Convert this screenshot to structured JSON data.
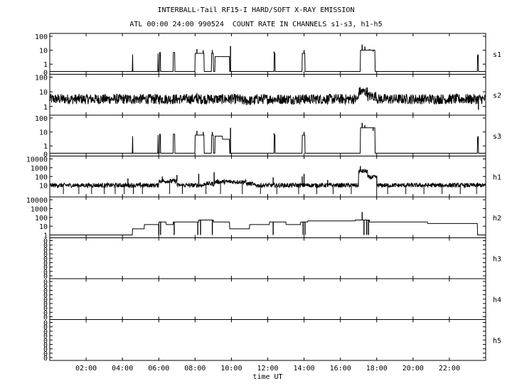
{
  "title": "INTERBALL-Tail RF15-I HARD/SOFT X-RAY EMISSION",
  "subtitle": "ATL 00:00 24:00 990524  COUNT RATE IN CHANNELS s1-s3, h1-h5",
  "chart_data": {
    "type": "line",
    "xlabel": "time UT",
    "x_unit": "hours UT",
    "xlim": [
      0,
      24
    ],
    "x_ticks": [
      2,
      4,
      6,
      8,
      10,
      12,
      14,
      16,
      18,
      20,
      22
    ],
    "x_tick_labels": [
      "02:00",
      "04:00",
      "06:00",
      "08:00",
      "10:00",
      "12:00",
      "14:00",
      "16:00",
      "18:00",
      "20:00",
      "22:00"
    ],
    "panels": [
      {
        "name": "s1",
        "scale": "log",
        "ylim": [
          0.3,
          100
        ],
        "y_ticks": [
          1,
          10,
          100
        ],
        "y_tick_labels": [
          "1",
          "10",
          "100"
        ],
        "bottom_label": "0",
        "baseline": 0.3,
        "noise": 0,
        "segments": [
          {
            "start": 4.55,
            "end": 4.56,
            "value": 5
          },
          {
            "start": 5.95,
            "end": 5.98,
            "value": 6
          },
          {
            "start": 6.05,
            "end": 6.1,
            "value": 7
          },
          {
            "start": 6.8,
            "end": 6.88,
            "value": 7
          },
          {
            "start": 8.0,
            "end": 8.5,
            "value": 6
          },
          {
            "start": 8.9,
            "end": 9.0,
            "value": 6
          },
          {
            "start": 9.1,
            "end": 9.9,
            "value": 3.5
          },
          {
            "start": 12.35,
            "end": 12.4,
            "value": 6
          },
          {
            "start": 13.9,
            "end": 14.05,
            "value": 6
          },
          {
            "start": 17.1,
            "end": 17.9,
            "value": 10
          },
          {
            "start": 23.55,
            "end": 23.6,
            "value": 4
          }
        ],
        "spikes": [
          {
            "x": 4.55,
            "value": 5
          },
          {
            "x": 5.96,
            "value": 6
          },
          {
            "x": 6.07,
            "value": 7
          },
          {
            "x": 6.82,
            "value": 7
          },
          {
            "x": 8.1,
            "value": 12
          },
          {
            "x": 8.45,
            "value": 10
          },
          {
            "x": 8.95,
            "value": 10
          },
          {
            "x": 9.95,
            "value": 20
          },
          {
            "x": 12.35,
            "value": 8
          },
          {
            "x": 14.0,
            "value": 10
          },
          {
            "x": 17.2,
            "value": 25
          },
          {
            "x": 17.35,
            "value": 18
          },
          {
            "x": 17.6,
            "value": 12
          },
          {
            "x": 17.8,
            "value": 8
          },
          {
            "x": 23.58,
            "value": 5
          }
        ]
      },
      {
        "name": "s2",
        "scale": "log",
        "ylim": [
          0.4,
          100
        ],
        "y_ticks": [
          1,
          10,
          100
        ],
        "y_tick_labels": [
          "1",
          "10",
          "100"
        ],
        "bottom_label": "",
        "baseline": 3.2,
        "noise": 0.35,
        "segments": [
          {
            "start": 9.7,
            "end": 10.0,
            "value": 3.2
          },
          {
            "start": 10.5,
            "end": 11.3,
            "value": 2.5
          },
          {
            "start": 17.0,
            "end": 17.5,
            "value": 10
          },
          {
            "start": 17.5,
            "end": 18.0,
            "value": 5
          }
        ],
        "spikes": [
          {
            "x": 8.1,
            "value": 8
          },
          {
            "x": 8.9,
            "value": 6
          },
          {
            "x": 9.95,
            "value": 6
          },
          {
            "x": 14.0,
            "value": 6
          },
          {
            "x": 17.2,
            "value": 15
          },
          {
            "x": 23.6,
            "value": 0.6
          }
        ]
      },
      {
        "name": "s3",
        "scale": "log",
        "ylim": [
          0.3,
          100
        ],
        "y_ticks": [
          1,
          10,
          100
        ],
        "y_tick_labels": [
          "1",
          "10",
          "100"
        ],
        "bottom_label": "0",
        "baseline": 0.3,
        "noise": 0,
        "segments": [
          {
            "start": 4.55,
            "end": 4.56,
            "value": 5
          },
          {
            "start": 5.95,
            "end": 5.98,
            "value": 6
          },
          {
            "start": 6.05,
            "end": 6.1,
            "value": 7
          },
          {
            "start": 6.8,
            "end": 6.88,
            "value": 7
          },
          {
            "start": 8.0,
            "end": 8.5,
            "value": 6
          },
          {
            "start": 8.9,
            "end": 9.0,
            "value": 6
          },
          {
            "start": 9.1,
            "end": 9.5,
            "value": 5
          },
          {
            "start": 9.5,
            "end": 9.9,
            "value": 3
          },
          {
            "start": 12.35,
            "end": 12.4,
            "value": 6
          },
          {
            "start": 13.9,
            "end": 14.05,
            "value": 6
          },
          {
            "start": 17.1,
            "end": 17.9,
            "value": 20
          },
          {
            "start": 23.55,
            "end": 23.6,
            "value": 4
          }
        ],
        "spikes": [
          {
            "x": 4.55,
            "value": 5
          },
          {
            "x": 5.96,
            "value": 6
          },
          {
            "x": 6.07,
            "value": 7
          },
          {
            "x": 6.82,
            "value": 7
          },
          {
            "x": 8.1,
            "value": 12
          },
          {
            "x": 8.45,
            "value": 10
          },
          {
            "x": 8.95,
            "value": 10
          },
          {
            "x": 9.95,
            "value": 20
          },
          {
            "x": 12.35,
            "value": 8
          },
          {
            "x": 14.0,
            "value": 10
          },
          {
            "x": 17.2,
            "value": 45
          },
          {
            "x": 17.35,
            "value": 30
          },
          {
            "x": 17.6,
            "value": 20
          },
          {
            "x": 17.8,
            "value": 12
          },
          {
            "x": 23.58,
            "value": 5
          }
        ]
      },
      {
        "name": "h1",
        "scale": "log",
        "ylim": [
          1,
          10000
        ],
        "y_ticks": [
          10,
          100,
          1000,
          10000
        ],
        "y_tick_labels": [
          "10",
          "100",
          "1000",
          "10000"
        ],
        "bottom_label": "",
        "baseline": 10,
        "noise": 0.25,
        "segments": [
          {
            "start": 6.0,
            "end": 7.0,
            "value": 30
          },
          {
            "start": 8.5,
            "end": 9.1,
            "value": 15
          },
          {
            "start": 9.1,
            "end": 10.8,
            "value": 25
          },
          {
            "start": 10.8,
            "end": 11.2,
            "value": 15
          },
          {
            "start": 17.0,
            "end": 17.5,
            "value": 400
          },
          {
            "start": 17.5,
            "end": 18.0,
            "value": 80
          }
        ],
        "spikes": [
          {
            "x": 4.3,
            "value": 60
          },
          {
            "x": 6.2,
            "value": 100
          },
          {
            "x": 7.0,
            "value": 150
          },
          {
            "x": 8.2,
            "value": 200
          },
          {
            "x": 9.05,
            "value": 300
          },
          {
            "x": 12.3,
            "value": 80
          },
          {
            "x": 13.9,
            "value": 100
          },
          {
            "x": 14.0,
            "value": 200
          },
          {
            "x": 15.3,
            "value": 40
          },
          {
            "x": 17.1,
            "value": 1500
          },
          {
            "x": 17.4,
            "value": 500
          }
        ],
        "dropouts": [
          0.75,
          1.6,
          2.3,
          3.0,
          3.6,
          4.1,
          4.6,
          5.1,
          6.6,
          7.3,
          8.6,
          9.4,
          10.6,
          11.6,
          12.5,
          13.7,
          14.7,
          15.6,
          16.6,
          18.0,
          18.6,
          19.6,
          20.6,
          21.6,
          22.6,
          23.5
        ]
      },
      {
        "name": "h2",
        "scale": "log",
        "ylim": [
          1,
          10000
        ],
        "y_ticks": [
          1,
          10,
          100,
          1000,
          10000
        ],
        "y_tick_labels": [
          "1",
          "10",
          "100",
          "1000",
          "10000"
        ],
        "bottom_label": "",
        "baseline": 1,
        "noise": 0,
        "segments": [
          {
            "start": 4.55,
            "end": 5.2,
            "value": 5
          },
          {
            "start": 5.2,
            "end": 6.0,
            "value": 15
          },
          {
            "start": 6.0,
            "end": 6.4,
            "value": 30
          },
          {
            "start": 6.4,
            "end": 6.8,
            "value": 15
          },
          {
            "start": 6.8,
            "end": 8.2,
            "value": 30
          },
          {
            "start": 8.2,
            "end": 9.0,
            "value": 50
          },
          {
            "start": 9.0,
            "end": 9.9,
            "value": 30
          },
          {
            "start": 9.9,
            "end": 11.0,
            "value": 5
          },
          {
            "start": 11.0,
            "end": 12.1,
            "value": 15
          },
          {
            "start": 12.1,
            "end": 13.0,
            "value": 30
          },
          {
            "start": 13.0,
            "end": 13.8,
            "value": 15
          },
          {
            "start": 13.8,
            "end": 14.2,
            "value": 30
          },
          {
            "start": 14.2,
            "end": 16.8,
            "value": 40
          },
          {
            "start": 16.8,
            "end": 17.6,
            "value": 50
          },
          {
            "start": 17.6,
            "end": 20.8,
            "value": 30
          },
          {
            "start": 20.8,
            "end": 23.55,
            "value": 20
          }
        ],
        "spikes": [
          {
            "x": 6.0,
            "value": 1
          },
          {
            "x": 6.1,
            "value": 1
          },
          {
            "x": 6.85,
            "value": 1
          },
          {
            "x": 8.15,
            "value": 1
          },
          {
            "x": 8.3,
            "value": 1
          },
          {
            "x": 8.95,
            "value": 1
          },
          {
            "x": 12.3,
            "value": 1
          },
          {
            "x": 13.95,
            "value": 1
          },
          {
            "x": 14.05,
            "value": 1
          },
          {
            "x": 17.2,
            "value": 400
          },
          {
            "x": 17.3,
            "value": 1
          },
          {
            "x": 17.45,
            "value": 1
          },
          {
            "x": 17.55,
            "value": 1
          },
          {
            "x": 23.58,
            "value": 1
          }
        ]
      },
      {
        "name": "h3",
        "scale": "flat",
        "ylim": [
          0,
          1
        ],
        "y_ticks": [
          0,
          0.125,
          0.25,
          0.375,
          0.5,
          0.625,
          0.75,
          0.875,
          1
        ],
        "y_tick_labels": [
          "0",
          "0",
          "0",
          "0",
          "0",
          "0",
          "0",
          "0",
          "0"
        ],
        "bottom_label": "",
        "segments": [],
        "spikes": []
      },
      {
        "name": "h4",
        "scale": "flat",
        "ylim": [
          0,
          1
        ],
        "y_ticks": [
          0,
          0.125,
          0.25,
          0.375,
          0.5,
          0.625,
          0.75,
          0.875,
          1
        ],
        "y_tick_labels": [
          "0",
          "0",
          "0",
          "0",
          "0",
          "0",
          "0",
          "0",
          "0"
        ],
        "bottom_label": "",
        "segments": [],
        "spikes": []
      },
      {
        "name": "h5",
        "scale": "flat",
        "ylim": [
          0,
          1
        ],
        "y_ticks": [
          0,
          0.125,
          0.25,
          0.375,
          0.5,
          0.625,
          0.75,
          0.875,
          1
        ],
        "y_tick_labels": [
          "0",
          "0",
          "0",
          "0",
          "0",
          "0",
          "0",
          "0",
          "0"
        ],
        "bottom_label": "",
        "segments": [],
        "spikes": []
      }
    ]
  }
}
